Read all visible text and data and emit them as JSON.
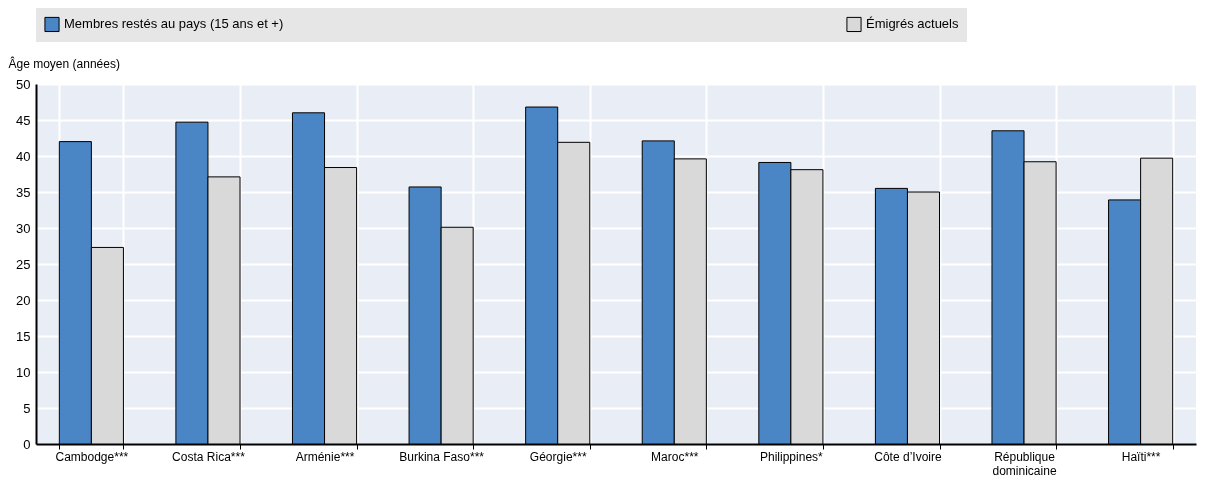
{
  "chart_data": {
    "type": "bar",
    "ylabel": "Âge moyen (années)",
    "categories": [
      "Cambodge***",
      "Costa Rica***",
      "Arménie***",
      "Burkina Faso***",
      "Géorgie***",
      "Maroc***",
      "Philippines*",
      "Côte d’Ivoire",
      "République dominicaine",
      "Haïti***"
    ],
    "series": [
      {
        "name": "Membres restés au pays (15 ans et +)",
        "color": "#4a86c5",
        "values": [
          42.0,
          44.7,
          46.0,
          35.7,
          46.8,
          42.1,
          39.1,
          35.5,
          43.5,
          33.9
        ]
      },
      {
        "name": "Émigrés actuels",
        "color": "#d9d9d9",
        "values": [
          27.3,
          37.1,
          38.4,
          30.1,
          41.9,
          39.6,
          38.1,
          35.0,
          39.2,
          39.7
        ]
      }
    ],
    "ylim": [
      0,
      50
    ],
    "yticks": [
      0,
      5,
      10,
      15,
      20,
      25,
      30,
      35,
      40,
      45,
      50
    ],
    "grid": true,
    "legend": "top"
  }
}
